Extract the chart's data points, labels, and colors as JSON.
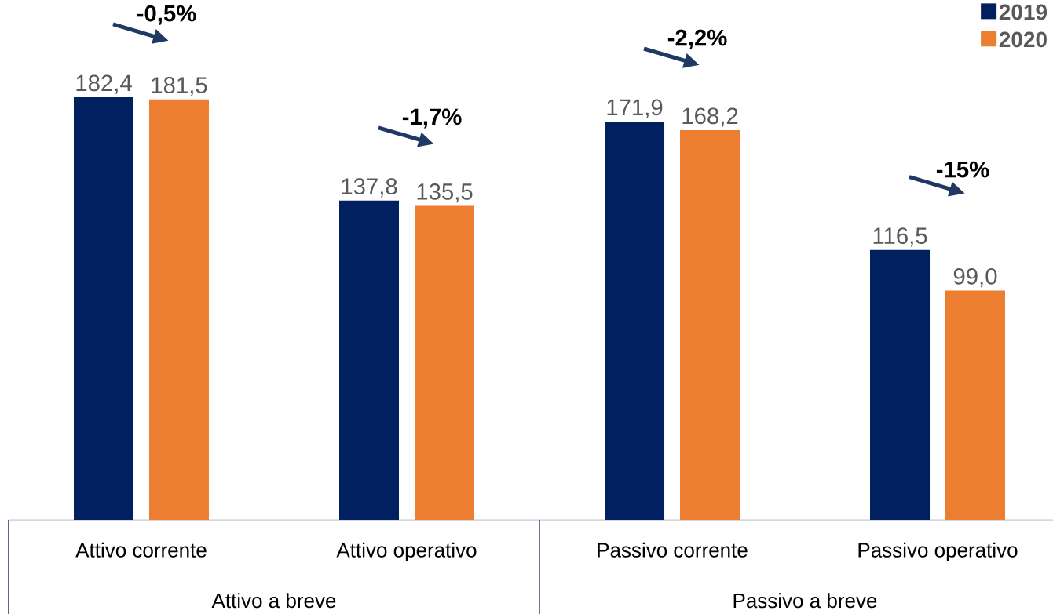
{
  "chart_data": {
    "type": "bar",
    "categories": [
      "Attivo corrente",
      "Attivo operativo",
      "Passivo corrente",
      "Passivo operativo"
    ],
    "series": [
      {
        "name": "2019",
        "color": "#002060",
        "values": [
          182.4,
          137.8,
          171.9,
          116.5
        ],
        "value_labels": [
          "182,4",
          "137,8",
          "171,9",
          "116,5"
        ]
      },
      {
        "name": "2020",
        "color": "#ed7d31",
        "values": [
          181.5,
          135.5,
          168.2,
          99.0
        ],
        "value_labels": [
          "181,5",
          "135,5",
          "168,2",
          "99,0"
        ]
      }
    ],
    "annotations": [
      "-0,5%",
      "-1,7%",
      "-2,2%",
      "-15%",
      "Attivo a breve",
      "Passivo a breve"
    ],
    "legend": "top right"
  }
}
